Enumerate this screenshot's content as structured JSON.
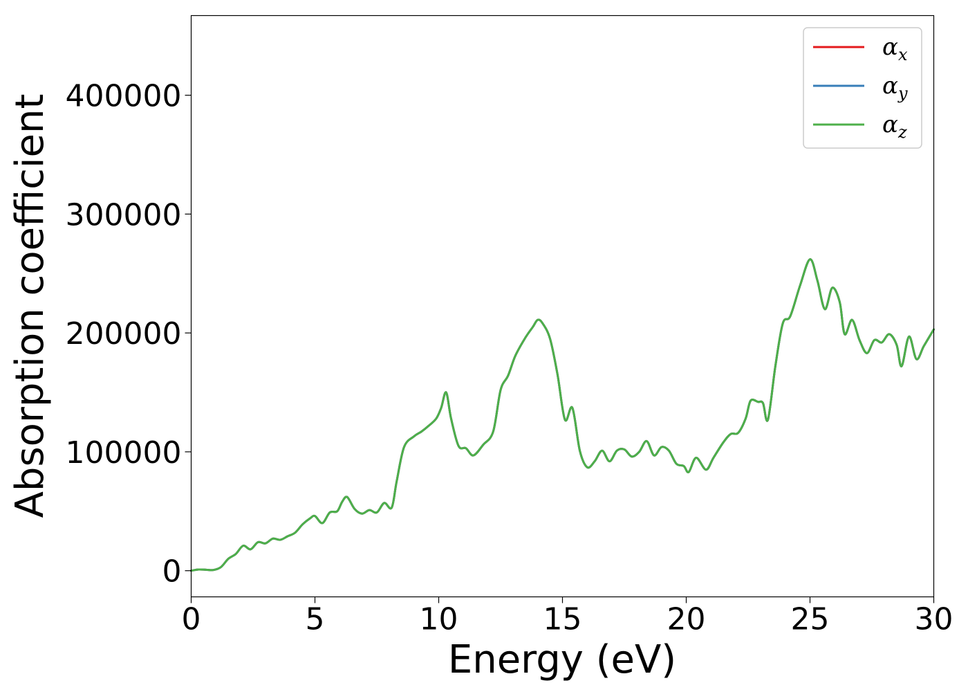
{
  "chart_data": {
    "type": "line",
    "title": "",
    "xlabel": "Energy (eV)",
    "ylabel": "Absorption coefficient",
    "xlim": [
      0,
      30
    ],
    "ylim": [
      -22000,
      467000
    ],
    "xticks": [
      0,
      5,
      10,
      15,
      20,
      25,
      30
    ],
    "xtick_labels": [
      "0",
      "5",
      "10",
      "15",
      "20",
      "25",
      "30"
    ],
    "yticks": [
      0,
      100000,
      200000,
      300000,
      400000
    ],
    "ytick_labels": [
      "0",
      "100000",
      "200000",
      "300000",
      "400000"
    ],
    "grid": false,
    "legend": {
      "placement": "top-right"
    },
    "series": [
      {
        "name": "αx",
        "symbol": "α",
        "subscript": "x",
        "color": "#e41a1c",
        "ref": "shared"
      },
      {
        "name": "αy",
        "symbol": "α",
        "subscript": "y",
        "color": "#377eb8",
        "ref": "shared"
      },
      {
        "name": "αz",
        "symbol": "α",
        "subscript": "z",
        "color": "#4daf4a",
        "ref": "shared"
      }
    ],
    "shared_curve": {
      "x": [
        0,
        0.3,
        0.6,
        0.9,
        1.2,
        1.5,
        1.8,
        2.1,
        2.4,
        2.7,
        3.0,
        3.3,
        3.6,
        3.9,
        4.2,
        4.5,
        4.8,
        5.0,
        5.3,
        5.6,
        5.9,
        6.1,
        6.3,
        6.6,
        6.9,
        7.2,
        7.5,
        7.8,
        8.1,
        8.3,
        8.6,
        9.0,
        9.3,
        9.6,
        9.9,
        10.1,
        10.3,
        10.5,
        10.8,
        11.1,
        11.4,
        11.8,
        12.2,
        12.5,
        12.8,
        13.1,
        13.5,
        13.8,
        14.0,
        14.2,
        14.5,
        14.8,
        15.1,
        15.4,
        15.7,
        16.0,
        16.3,
        16.6,
        16.9,
        17.2,
        17.5,
        17.8,
        18.1,
        18.4,
        18.7,
        19.0,
        19.3,
        19.6,
        19.9,
        20.1,
        20.4,
        20.8,
        21.1,
        21.5,
        21.8,
        22.1,
        22.4,
        22.6,
        22.9,
        23.1,
        23.3,
        23.6,
        23.9,
        24.2,
        24.6,
        25.0,
        25.3,
        25.6,
        25.9,
        26.2,
        26.4,
        26.7,
        27.0,
        27.3,
        27.6,
        27.9,
        28.2,
        28.5,
        28.7,
        29.0,
        29.3,
        29.6,
        30.0
      ],
      "y": [
        0,
        1000,
        800,
        600,
        3000,
        10000,
        14000,
        21000,
        18000,
        24000,
        23000,
        27000,
        26000,
        29000,
        32000,
        39000,
        44000,
        46000,
        40000,
        49000,
        50000,
        58000,
        62000,
        52000,
        48000,
        51000,
        49000,
        57000,
        53000,
        75000,
        104000,
        113000,
        117000,
        122000,
        128000,
        137000,
        150000,
        128000,
        105000,
        103000,
        97000,
        106000,
        117000,
        152000,
        164000,
        181000,
        196000,
        205000,
        211000,
        208000,
        195000,
        165000,
        127000,
        137000,
        101000,
        87000,
        92000,
        101000,
        92000,
        101000,
        102000,
        96000,
        100000,
        109000,
        97000,
        104000,
        101000,
        90000,
        88000,
        83000,
        95000,
        85000,
        95000,
        108000,
        115000,
        116000,
        128000,
        143000,
        142000,
        141000,
        127000,
        172000,
        208000,
        214000,
        240000,
        262000,
        244000,
        220000,
        238000,
        226000,
        199000,
        211000,
        194000,
        183000,
        194000,
        192000,
        199000,
        190000,
        172000,
        197000,
        178000,
        189000,
        203000
      ]
    }
  }
}
